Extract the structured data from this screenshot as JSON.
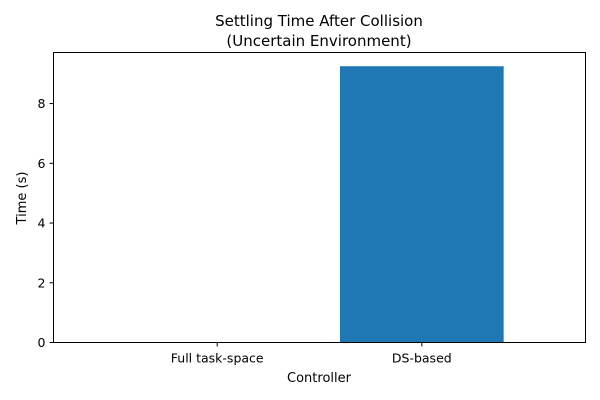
{
  "chart_data": {
    "type": "bar",
    "title_lines": [
      "Settling Time After Collision",
      "(Uncertain Environment)"
    ],
    "xlabel": "Controller",
    "ylabel": "Time (s)",
    "categories": [
      "Full task-space",
      "DS-based"
    ],
    "values": [
      0.0,
      9.25
    ],
    "ylim": [
      0,
      9.71
    ],
    "yticks": [
      0,
      2,
      4,
      6,
      8
    ],
    "ytick_labels": [
      "0",
      "2",
      "4",
      "6",
      "8"
    ],
    "bar_color": "#1f77b4",
    "grid": false,
    "legend": "none"
  }
}
